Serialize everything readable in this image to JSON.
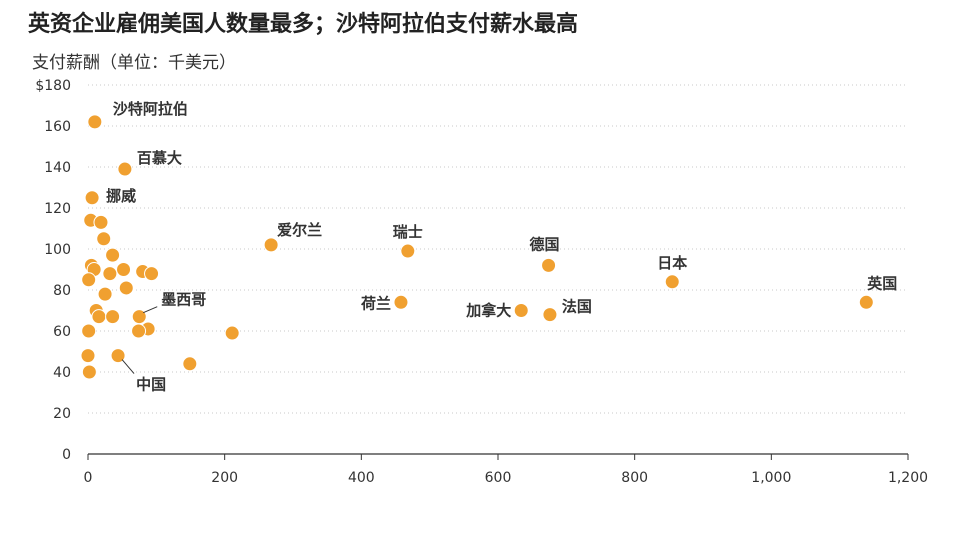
{
  "title": "英资企业雇佣美国人数量最多；沙特阿拉伯支付薪水最高",
  "subtitle": "支付薪酬（单位：千美元）",
  "colors": {
    "point": "#F0A030",
    "point_stroke": "#ffffff",
    "grid": "#c8c8c8",
    "axis": "#333333"
  },
  "chart_data": {
    "type": "scatter",
    "title": "英资企业雇佣美国人数量最多；沙特阿拉伯支付薪水最高",
    "ylabel": "支付薪酬（单位：千美元）",
    "xlabel": "",
    "xlim": [
      0,
      1200
    ],
    "ylim": [
      0,
      180
    ],
    "x_ticks": [
      0,
      200,
      400,
      600,
      800,
      1000,
      1200
    ],
    "x_tick_labels": [
      "0",
      "200",
      "400",
      "600",
      "800",
      "1,000",
      "1,200"
    ],
    "y_ticks": [
      0,
      20,
      40,
      60,
      80,
      100,
      120,
      140,
      160,
      180
    ],
    "y_tick_labels": [
      "0",
      "20",
      "40",
      "60",
      "80",
      "100",
      "120",
      "140",
      "160",
      "$180"
    ],
    "grid": "horizontal dotted",
    "points": [
      {
        "x": 10,
        "y": 162,
        "label": "沙特阿拉伯"
      },
      {
        "x": 54,
        "y": 139,
        "label": "百慕大"
      },
      {
        "x": 6,
        "y": 125,
        "label": "挪威"
      },
      {
        "x": 4,
        "y": 114
      },
      {
        "x": 19,
        "y": 113
      },
      {
        "x": 23,
        "y": 105
      },
      {
        "x": 36,
        "y": 97
      },
      {
        "x": 5,
        "y": 92
      },
      {
        "x": 9,
        "y": 90
      },
      {
        "x": 52,
        "y": 90
      },
      {
        "x": 80,
        "y": 89
      },
      {
        "x": 93,
        "y": 88
      },
      {
        "x": 32,
        "y": 88
      },
      {
        "x": 1,
        "y": 85
      },
      {
        "x": 56,
        "y": 81
      },
      {
        "x": 25,
        "y": 78
      },
      {
        "x": 12,
        "y": 70
      },
      {
        "x": 16,
        "y": 67
      },
      {
        "x": 36,
        "y": 67
      },
      {
        "x": 75,
        "y": 67,
        "label": "墨西哥"
      },
      {
        "x": 88,
        "y": 61
      },
      {
        "x": 74,
        "y": 60
      },
      {
        "x": 1,
        "y": 60
      },
      {
        "x": 211,
        "y": 59
      },
      {
        "x": 0,
        "y": 48
      },
      {
        "x": 44,
        "y": 48,
        "label": "中国"
      },
      {
        "x": 149,
        "y": 44
      },
      {
        "x": 2,
        "y": 40
      },
      {
        "x": 268,
        "y": 102,
        "label": "爱尔兰"
      },
      {
        "x": 468,
        "y": 99,
        "label": "瑞士"
      },
      {
        "x": 674,
        "y": 92,
        "label": "德国"
      },
      {
        "x": 458,
        "y": 74,
        "label": "荷兰"
      },
      {
        "x": 634,
        "y": 70,
        "label": "加拿大"
      },
      {
        "x": 676,
        "y": 68,
        "label": "法国"
      },
      {
        "x": 855,
        "y": 84,
        "label": "日本"
      },
      {
        "x": 1139,
        "y": 74,
        "label": "英国"
      }
    ]
  }
}
